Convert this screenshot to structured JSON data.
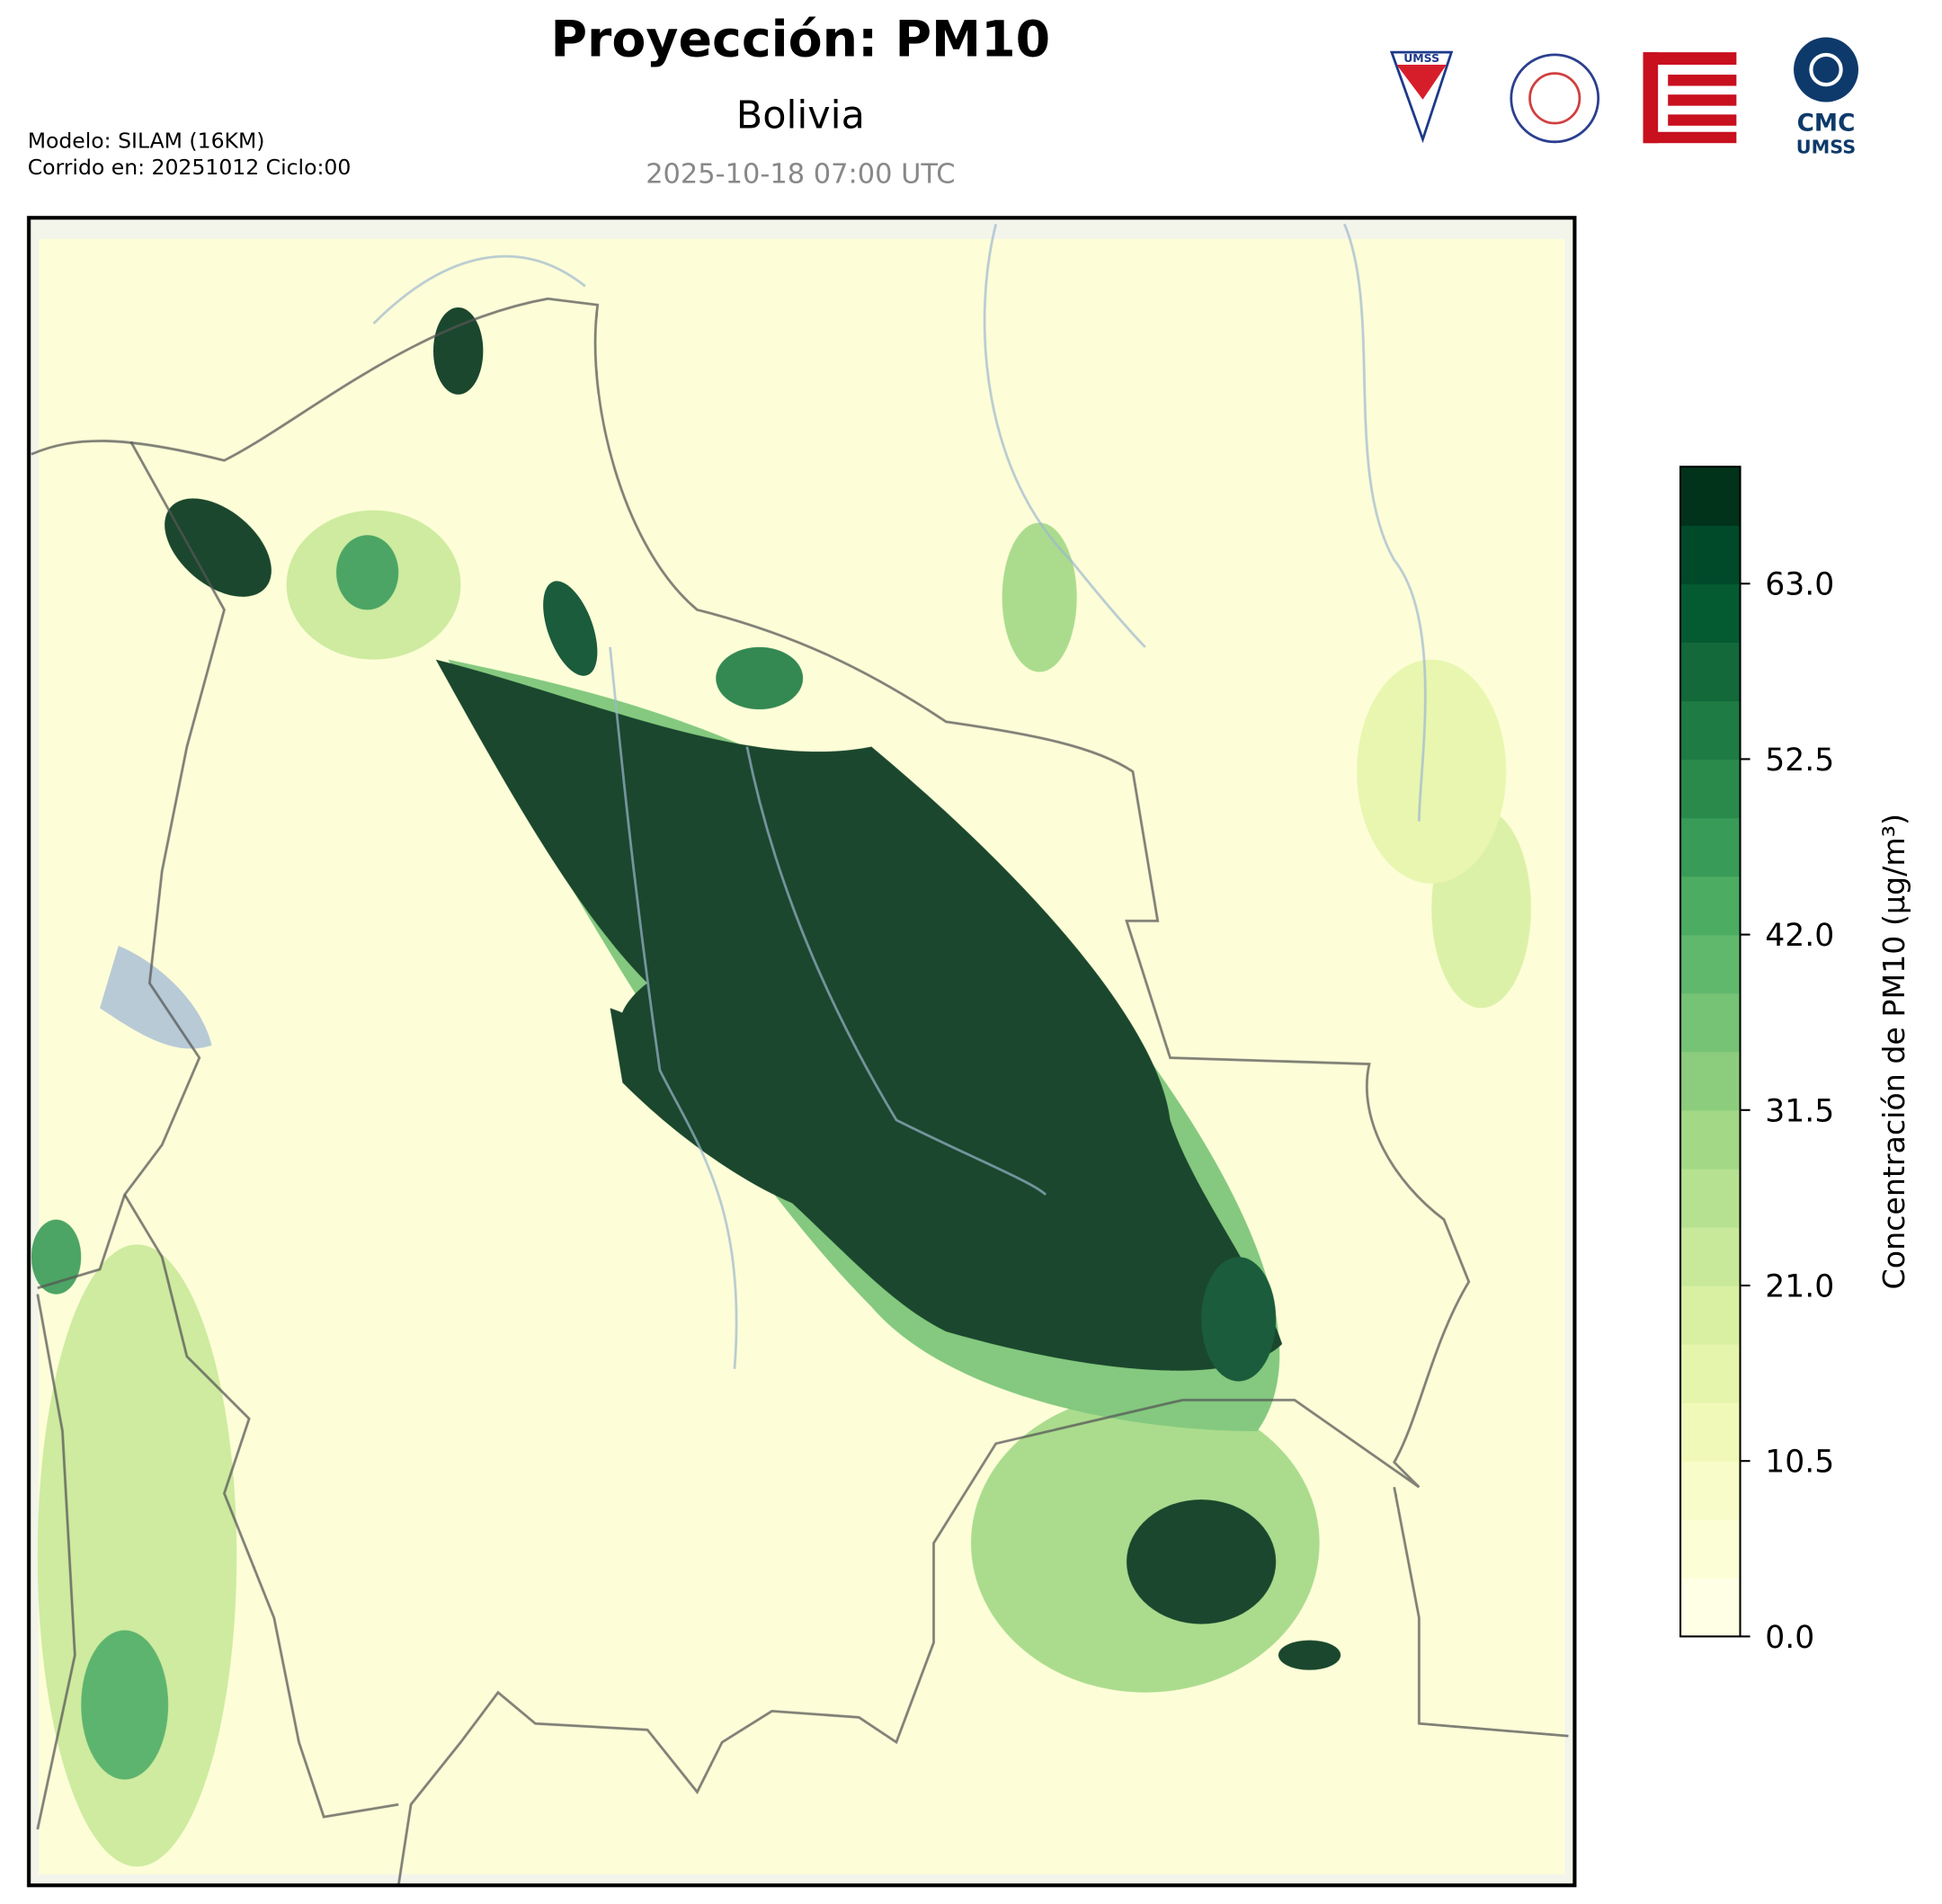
{
  "header": {
    "title": "Proyección: PM10",
    "subtitle": "Bolivia",
    "datetime": "2025-10-18 07:00 UTC",
    "model": "Modelo: SILAM (16KM)",
    "run": "Corrido en: 20251012 Ciclo:00"
  },
  "logos": {
    "umss": "UMSS",
    "cmc": "CMC",
    "cmc_sub": "UMSS"
  },
  "colorbar": {
    "label": "Concentración de PM10 (μg/m³)",
    "lim": [
      0,
      70
    ],
    "ticks": [
      {
        "value": 0,
        "label": "0.0"
      },
      10.5,
      21.0,
      31.5,
      42.0,
      52.5,
      63.0
    ],
    "colors": [
      "#ffffe5",
      "#fcfed6",
      "#f8fcc8",
      "#f1f9b9",
      "#e6f5ac",
      "#d9f0a3",
      "#c9e99a",
      "#b6e190",
      "#a2d886",
      "#8ccd7d",
      "#76c375",
      "#60b86c",
      "#4bac62",
      "#389b57",
      "#2a8a4c",
      "#1e7b43",
      "#13693a",
      "#055b31",
      "#004a2a",
      "#00331a"
    ]
  }
}
